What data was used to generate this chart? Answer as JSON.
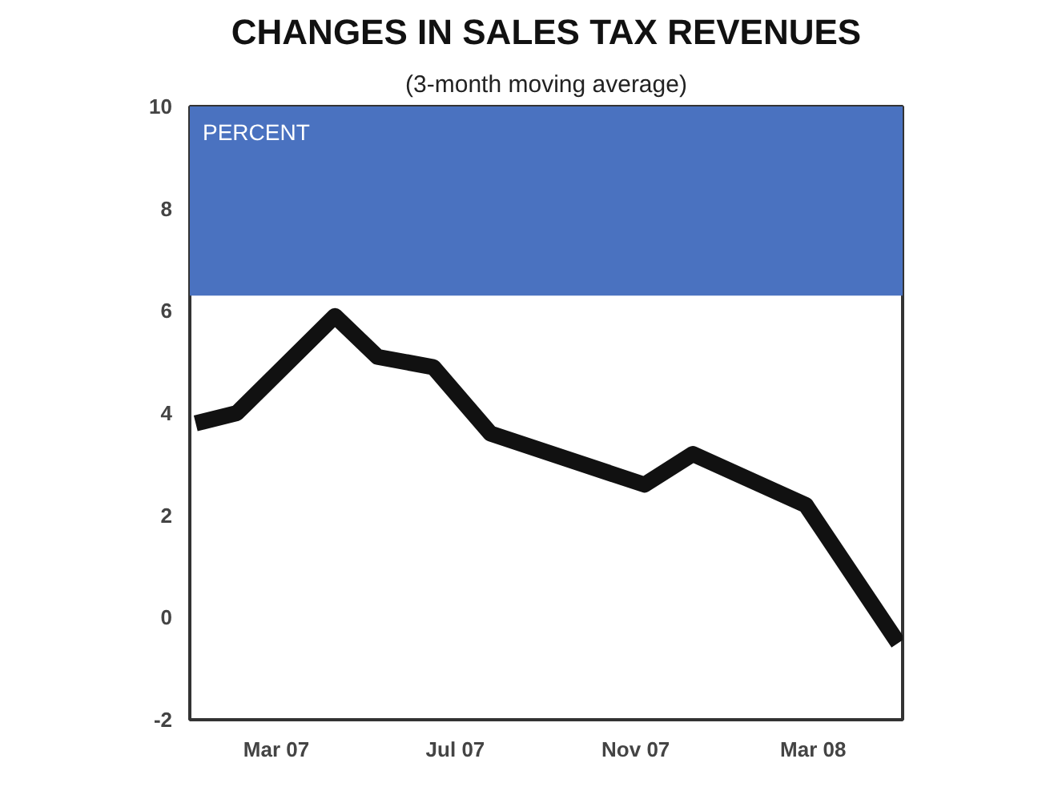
{
  "chart_data": {
    "type": "line",
    "title": "CHANGES IN SALES TAX REVENUES",
    "subtitle": "(3-month moving average)",
    "x": [
      "2007-01-05",
      "2007-02-02",
      "2007-04-10",
      "2007-05-09",
      "2007-06-16",
      "2007-07-25",
      "2007-11-07",
      "2007-12-10",
      "2008-02-25",
      "2008-04-28"
    ],
    "series": [
      {
        "color": "#111111",
        "values": [
          3.8,
          4.0,
          5.9,
          5.1,
          4.9,
          3.6,
          2.6,
          3.2,
          2.2,
          -0.5
        ]
      }
    ],
    "xlim": [
      "2007-01-01",
      "2008-05-01"
    ],
    "xticks": [
      {
        "value": "2007-03-01",
        "label": "Mar 07"
      },
      {
        "value": "2007-07-01",
        "label": "Jul 07"
      },
      {
        "value": "2007-11-01",
        "label": "Nov 07"
      },
      {
        "value": "2008-03-01",
        "label": "Mar 08"
      }
    ],
    "ylim": [
      -2,
      10
    ],
    "yticks": [
      -2,
      0,
      2,
      4,
      6,
      8,
      10
    ],
    "bands": [
      {
        "axis": "y",
        "from": 6.3,
        "to": 10,
        "label": "PERCENT",
        "color": "#4a72c0"
      }
    ],
    "line_style": "solid",
    "marker": "none",
    "grid": false
  }
}
